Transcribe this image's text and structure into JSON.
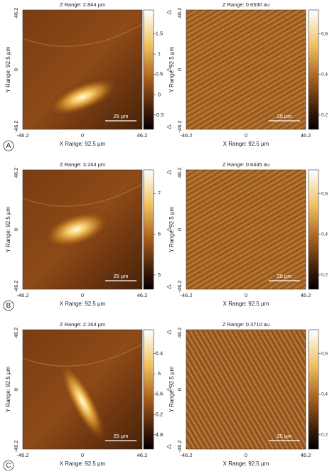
{
  "rows": [
    {
      "label": "A",
      "panels": [
        {
          "z_range": "Z Range: 2.844 µm",
          "y_ticks": [
            "46.2",
            "0",
            "-46.2"
          ],
          "y_label": "Y Range: 92.5 µm",
          "x_ticks": [
            "-46.2",
            "0",
            "46.2"
          ],
          "x_label": "X Range: 92.5 µm",
          "scale_bar": "25 µm",
          "colorbar_ticks": [
            "1.5",
            "1",
            "0.5",
            "0",
            "-0.5"
          ]
        },
        {
          "z_range": "Z Range: 0.6530 au",
          "y_ticks": [
            "46.2",
            "0",
            "-46.2"
          ],
          "y_label": "Y Range: 92.5 µm",
          "x_ticks": [
            "-46.2",
            "0",
            "46.2"
          ],
          "x_label": "X Range: 92.5 µm",
          "scale_bar": "25 µm",
          "colorbar_ticks": [
            "0.6",
            "0.4",
            "0.2"
          ]
        }
      ]
    },
    {
      "label": "B",
      "panels": [
        {
          "z_range": "Z Range: 3.244 µm",
          "y_ticks": [
            "46.2",
            "0",
            "-46.2"
          ],
          "y_label": "Y Range: 92.5 µm",
          "x_ticks": [
            "-46.2",
            "0",
            "46.2"
          ],
          "x_label": "X Range: 92.5 µm",
          "scale_bar": "25 µm",
          "colorbar_ticks": [
            "7",
            "6",
            "5"
          ]
        },
        {
          "z_range": "Z Range: 0.6445 au",
          "y_ticks": [
            "46.2",
            "0",
            "-46.2"
          ],
          "y_label": "Y Range: 92.5 µm",
          "x_ticks": [
            "-46.2",
            "0",
            "46.2"
          ],
          "x_label": "X Range: 92.5 µm",
          "scale_bar": "25 µm",
          "colorbar_ticks": [
            "0.6",
            "0.4",
            "0.2"
          ]
        }
      ]
    },
    {
      "label": "C",
      "panels": [
        {
          "z_range": "Z Range: 2.164 µm",
          "y_ticks": [
            "46.2",
            "0",
            "-46.2"
          ],
          "y_label": "Y Range: 92.5 µm",
          "x_ticks": [
            "-46.2",
            "0",
            "46.2"
          ],
          "x_label": "X Range: 92.5 µm",
          "scale_bar": "25 µm",
          "colorbar_ticks": [
            "6.4",
            "6",
            "5.6",
            "5.2",
            "4.8"
          ]
        },
        {
          "z_range": "Z Range: 0.3710 au",
          "y_ticks": [
            "46.2",
            "0",
            "-46.2"
          ],
          "y_label": "Y Range: 92.5 µm",
          "x_ticks": [
            "-46.2",
            "0",
            "46.2"
          ],
          "x_label": "X Range: 92.5 µm",
          "scale_bar": "25 µm",
          "colorbar_ticks": [
            "0.6",
            "0.4",
            "0.2"
          ]
        }
      ]
    }
  ]
}
